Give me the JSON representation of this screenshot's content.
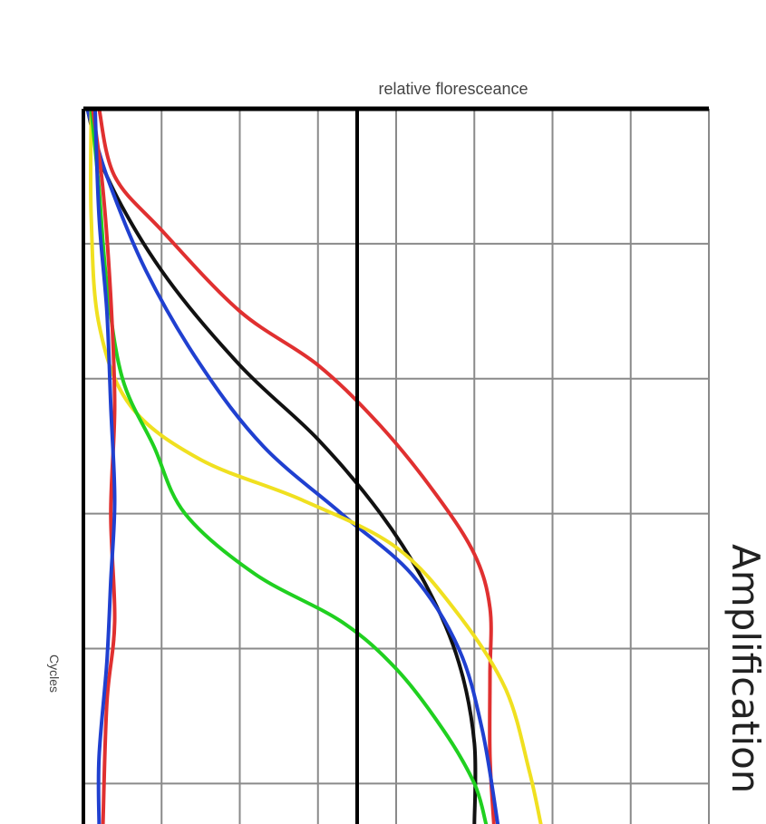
{
  "chart_data": {
    "type": "line",
    "title": "Amplification",
    "xlabel": "relative floresceance",
    "ylabel": "Cycles",
    "grid": true,
    "legend": "none",
    "orientation": "rotated-90",
    "xlim": [
      0,
      8
    ],
    "ylim": [
      0,
      5.3
    ],
    "threshold_x": 3.5,
    "series": [
      {
        "color": "#e03030",
        "points": [
          [
            0.2,
            0
          ],
          [
            0.4,
            0.5
          ],
          [
            1.0,
            0.9
          ],
          [
            2.0,
            1.5
          ],
          [
            3.0,
            1.9
          ],
          [
            3.8,
            2.35
          ],
          [
            4.5,
            2.85
          ],
          [
            5.0,
            3.3
          ],
          [
            5.2,
            3.7
          ],
          [
            5.2,
            4.2
          ],
          [
            5.2,
            4.8
          ],
          [
            5.25,
            5.3
          ]
        ]
      },
      {
        "color": "#111111",
        "points": [
          [
            0.05,
            0
          ],
          [
            0.3,
            0.5
          ],
          [
            1.0,
            1.2
          ],
          [
            2.0,
            1.9
          ],
          [
            3.0,
            2.45
          ],
          [
            3.8,
            3.0
          ],
          [
            4.4,
            3.55
          ],
          [
            4.8,
            4.1
          ],
          [
            5.0,
            4.7
          ],
          [
            5.0,
            5.3
          ]
        ]
      },
      {
        "color": "#2040d0",
        "points": [
          [
            0.05,
            0
          ],
          [
            0.3,
            0.5
          ],
          [
            0.8,
            1.2
          ],
          [
            1.5,
            1.9
          ],
          [
            2.3,
            2.5
          ],
          [
            3.3,
            3.0
          ],
          [
            4.2,
            3.45
          ],
          [
            4.8,
            4.0
          ],
          [
            5.1,
            4.6
          ],
          [
            5.3,
            5.3
          ]
        ]
      },
      {
        "color": "#f0e020",
        "points": [
          [
            0.1,
            0
          ],
          [
            0.1,
            0.8
          ],
          [
            0.2,
            1.6
          ],
          [
            0.6,
            2.2
          ],
          [
            1.5,
            2.6
          ],
          [
            2.8,
            2.9
          ],
          [
            4.0,
            3.25
          ],
          [
            4.8,
            3.75
          ],
          [
            5.4,
            4.3
          ],
          [
            5.7,
            4.9
          ],
          [
            5.85,
            5.3
          ]
        ]
      },
      {
        "color": "#20d020",
        "points": [
          [
            0.1,
            0
          ],
          [
            0.2,
            0.6
          ],
          [
            0.3,
            1.3
          ],
          [
            0.5,
            2.0
          ],
          [
            0.9,
            2.5
          ],
          [
            1.3,
            3.0
          ],
          [
            2.2,
            3.45
          ],
          [
            3.3,
            3.8
          ],
          [
            4.0,
            4.15
          ],
          [
            4.6,
            4.6
          ],
          [
            5.0,
            5.0
          ],
          [
            5.15,
            5.3
          ]
        ]
      },
      {
        "color": "#e03030",
        "points": [
          [
            0.12,
            0
          ],
          [
            0.25,
            0.6
          ],
          [
            0.35,
            1.4
          ],
          [
            0.4,
            2.2
          ],
          [
            0.35,
            3.0
          ],
          [
            0.4,
            3.8
          ],
          [
            0.3,
            4.4
          ],
          [
            0.25,
            5.3
          ]
        ]
      },
      {
        "color": "#2040d0",
        "points": [
          [
            0.15,
            0
          ],
          [
            0.2,
            0.8
          ],
          [
            0.3,
            1.5
          ],
          [
            0.35,
            2.2
          ],
          [
            0.4,
            2.9
          ],
          [
            0.35,
            3.5
          ],
          [
            0.3,
            4.1
          ],
          [
            0.2,
            4.8
          ],
          [
            0.2,
            5.3
          ]
        ]
      }
    ]
  }
}
